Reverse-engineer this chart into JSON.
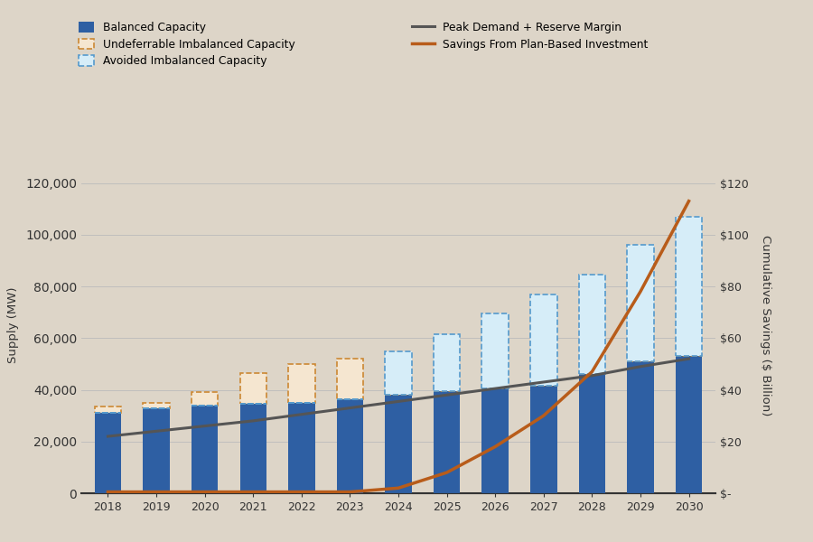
{
  "years": [
    2018,
    2019,
    2020,
    2021,
    2022,
    2023,
    2024,
    2025,
    2026,
    2027,
    2028,
    2029,
    2030
  ],
  "balanced_capacity": [
    31000,
    33000,
    34000,
    34500,
    35000,
    36500,
    38000,
    39500,
    40500,
    41500,
    46000,
    51000,
    53000
  ],
  "undeferrable_imbalanced": [
    2500,
    2000,
    5000,
    12000,
    15000,
    15500,
    0,
    0,
    0,
    0,
    0,
    0,
    0
  ],
  "avoided_imbalanced": [
    0,
    0,
    0,
    0,
    0,
    0,
    17000,
    22000,
    29000,
    35500,
    38500,
    45000,
    54000
  ],
  "peak_demand": [
    22000,
    24000,
    26000,
    28000,
    30500,
    33000,
    35500,
    38000,
    40500,
    43000,
    45500,
    49000,
    52000
  ],
  "savings": [
    0.5,
    0.5,
    0.5,
    0.5,
    0.5,
    0.5,
    2,
    8,
    18,
    30,
    47,
    78,
    113
  ],
  "bg_color": "#ddd5c8",
  "bar_blue": "#2e5fa3",
  "undeferrable_color": "#f5e6d0",
  "avoided_color": "#d6edf8",
  "undeferrable_edge": "#cc8833",
  "avoided_edge": "#5599cc",
  "peak_color": "#555555",
  "savings_color": "#b85c1a",
  "ylabel_left": "Supply (MW)",
  "ylabel_right": "Cumulative Savings ($ Billion)",
  "ylim_left": [
    0,
    130000
  ],
  "ylim_right": [
    0,
    130
  ],
  "yticks_left": [
    0,
    20000,
    40000,
    60000,
    80000,
    100000,
    120000
  ],
  "yticks_right_labels": [
    "$-",
    "$20",
    "$40",
    "$60",
    "$80",
    "$100",
    "$120"
  ],
  "yticks_right_vals": [
    0,
    20,
    40,
    60,
    80,
    100,
    120
  ],
  "legend_items": [
    "Balanced Capacity",
    "Undeferrable Imbalanced Capacity",
    "Avoided Imbalanced Capacity",
    "Peak Demand + Reserve Margin",
    "Savings From Plan-Based Investment"
  ]
}
